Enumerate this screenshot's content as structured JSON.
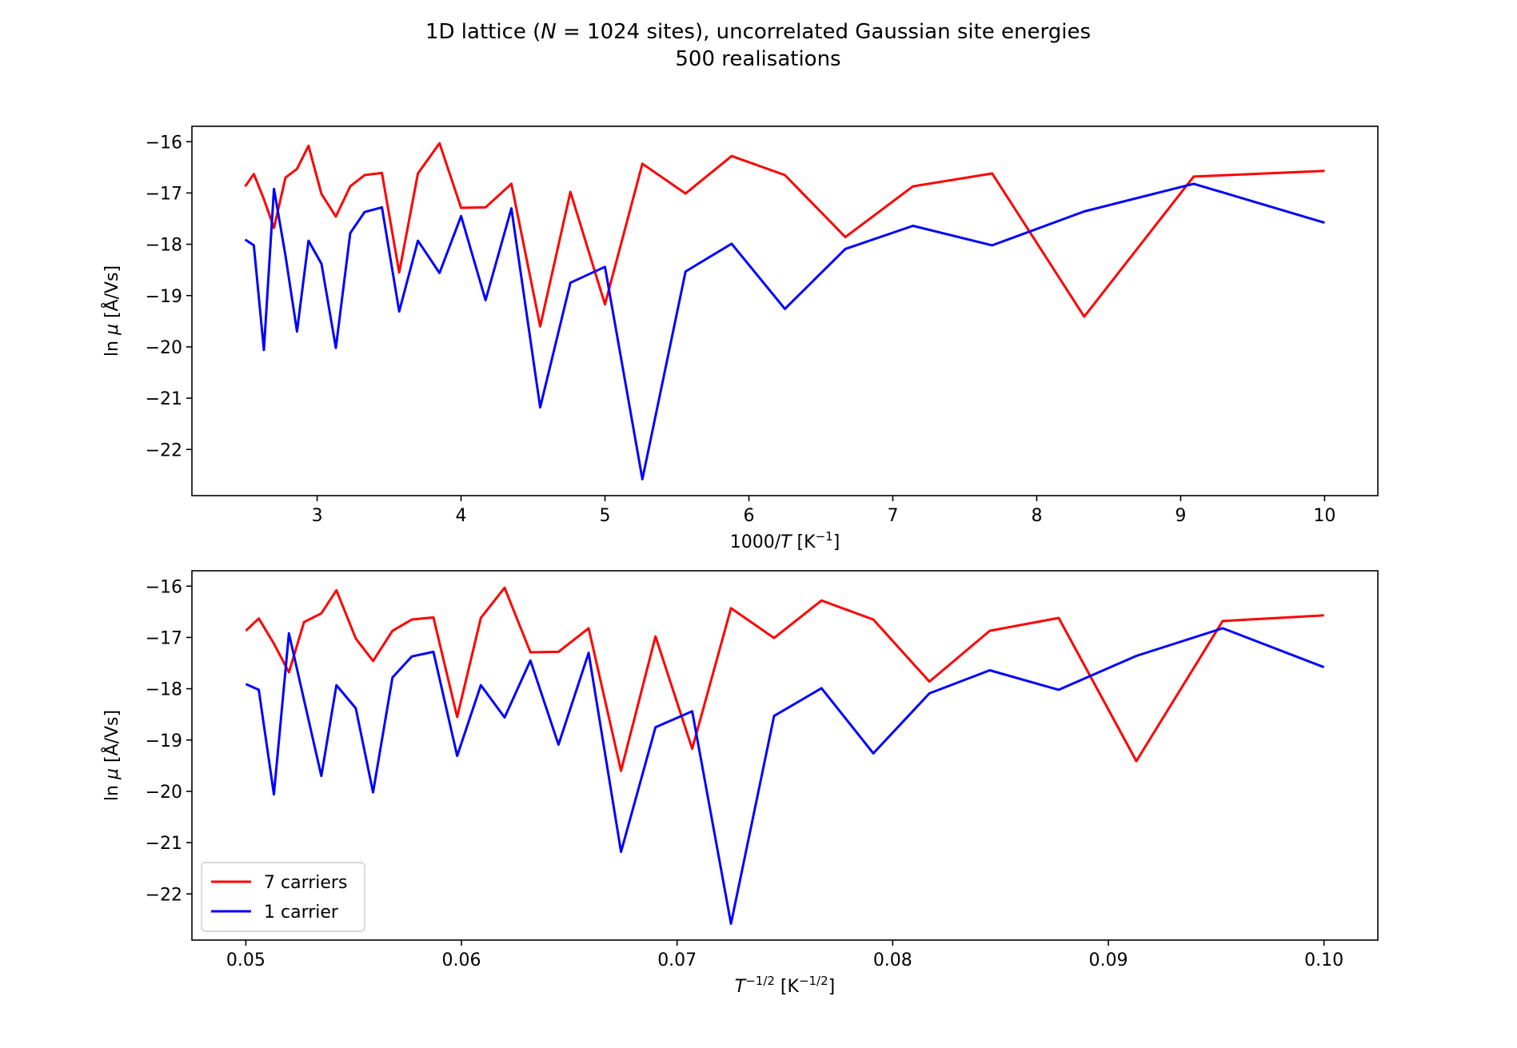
{
  "figure": {
    "title_line1": "1D lattice (N = 1024 sites), uncorrelated Gaussian site energies",
    "title_line2": "500 realisations"
  },
  "chart_data": [
    {
      "type": "line",
      "xlabel": "1000/T [K⁻¹]",
      "ylabel": "ln μ [Å/Vs]",
      "xlim": [
        2.13,
        10.37
      ],
      "ylim": [
        -22.9,
        -15.7
      ],
      "xticks": [
        3,
        4,
        5,
        6,
        7,
        8,
        9,
        10
      ],
      "yticks": [
        -16,
        -17,
        -18,
        -19,
        -20,
        -21,
        -22
      ],
      "grid": false,
      "x": [
        2.5,
        2.56,
        2.63,
        2.7,
        2.78,
        2.86,
        2.94,
        3.03,
        3.13,
        3.23,
        3.33,
        3.45,
        3.57,
        3.7,
        3.85,
        4.0,
        4.17,
        4.35,
        4.55,
        4.76,
        5.0,
        5.26,
        5.56,
        5.88,
        6.25,
        6.67,
        7.14,
        7.69,
        8.33,
        9.09,
        10.0
      ],
      "series": [
        {
          "name": "7 carriers",
          "color": "#ff0000",
          "values": [
            -16.87,
            -16.63,
            -17.12,
            -17.68,
            -16.7,
            -16.53,
            -16.08,
            -17.02,
            -17.46,
            -16.87,
            -16.65,
            -16.61,
            -18.55,
            -16.62,
            -16.03,
            -17.29,
            -17.28,
            -16.82,
            -19.6,
            -16.98,
            -19.17,
            -16.43,
            -17.01,
            -16.28,
            -16.65,
            -17.86,
            -16.87,
            -16.62,
            -19.41,
            -16.68,
            -16.57
          ]
        },
        {
          "name": "1 carrier",
          "color": "#0000ff",
          "values": [
            -17.91,
            -18.02,
            -20.06,
            -16.92,
            -18.22,
            -19.7,
            -17.93,
            -18.38,
            -20.02,
            -17.78,
            -17.37,
            -17.28,
            -19.31,
            -17.93,
            -18.56,
            -17.45,
            -19.09,
            -17.3,
            -21.18,
            -18.75,
            -18.44,
            -22.58,
            -18.53,
            -17.99,
            -19.26,
            -18.09,
            -17.64,
            -18.02,
            -17.36,
            -16.82,
            -17.58
          ]
        }
      ]
    },
    {
      "type": "line",
      "xlabel": "T^-1/2 [K^-1/2]",
      "ylabel": "ln μ [Å/Vs]",
      "xlim": [
        0.0475,
        0.1025
      ],
      "ylim": [
        -22.9,
        -15.7
      ],
      "xticks": [
        0.05,
        0.06,
        0.07,
        0.08,
        0.09,
        0.1
      ],
      "xtick_labels": [
        "0.05",
        "0.06",
        "0.07",
        "0.08",
        "0.09",
        "0.10"
      ],
      "yticks": [
        -16,
        -17,
        -18,
        -19,
        -20,
        -21,
        -22
      ],
      "grid": false,
      "legend": "lower-left",
      "x": [
        0.05,
        0.0506,
        0.0513,
        0.052,
        0.0527,
        0.0535,
        0.0542,
        0.0551,
        0.0559,
        0.0568,
        0.0577,
        0.0587,
        0.0598,
        0.0609,
        0.062,
        0.0632,
        0.0645,
        0.0659,
        0.0674,
        0.069,
        0.0707,
        0.0725,
        0.0745,
        0.0767,
        0.0791,
        0.0817,
        0.0845,
        0.0877,
        0.0913,
        0.0953,
        0.1
      ],
      "series": [
        {
          "name": "7 carriers",
          "color": "#ff0000",
          "values": [
            -16.87,
            -16.63,
            -17.12,
            -17.68,
            -16.7,
            -16.53,
            -16.08,
            -17.02,
            -17.46,
            -16.87,
            -16.65,
            -16.61,
            -18.55,
            -16.62,
            -16.03,
            -17.29,
            -17.28,
            -16.82,
            -19.6,
            -16.98,
            -19.17,
            -16.43,
            -17.01,
            -16.28,
            -16.65,
            -17.86,
            -16.87,
            -16.62,
            -19.41,
            -16.68,
            -16.57
          ]
        },
        {
          "name": "1 carrier",
          "color": "#0000ff",
          "values": [
            -17.91,
            -18.02,
            -20.06,
            -16.92,
            -18.22,
            -19.7,
            -17.93,
            -18.38,
            -20.02,
            -17.78,
            -17.37,
            -17.28,
            -19.31,
            -17.93,
            -18.56,
            -17.45,
            -19.09,
            -17.3,
            -21.18,
            -18.75,
            -18.44,
            -22.58,
            -18.53,
            -17.99,
            -19.26,
            -18.09,
            -17.64,
            -18.02,
            -17.36,
            -16.82,
            -17.58
          ]
        }
      ]
    }
  ]
}
